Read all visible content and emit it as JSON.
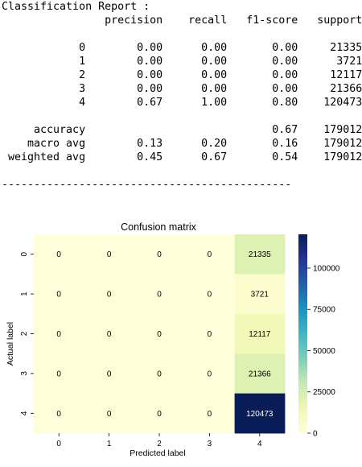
{
  "report": {
    "title": "Classification Report :",
    "headers": [
      "precision",
      "recall",
      "f1-score",
      "support"
    ],
    "rows": [
      {
        "label": "0",
        "precision": "0.00",
        "recall": "0.00",
        "f1": "0.00",
        "support": "21335"
      },
      {
        "label": "1",
        "precision": "0.00",
        "recall": "0.00",
        "f1": "0.00",
        "support": "3721"
      },
      {
        "label": "2",
        "precision": "0.00",
        "recall": "0.00",
        "f1": "0.00",
        "support": "12117"
      },
      {
        "label": "3",
        "precision": "0.00",
        "recall": "0.00",
        "f1": "0.00",
        "support": "21366"
      },
      {
        "label": "4",
        "precision": "0.67",
        "recall": "1.00",
        "f1": "0.80",
        "support": "120473"
      }
    ],
    "summary": [
      {
        "label": "accuracy",
        "precision": "",
        "recall": "",
        "f1": "0.67",
        "support": "179012"
      },
      {
        "label": "macro avg",
        "precision": "0.13",
        "recall": "0.20",
        "f1": "0.16",
        "support": "179012"
      },
      {
        "label": "weighted avg",
        "precision": "0.45",
        "recall": "0.67",
        "f1": "0.54",
        "support": "179012"
      }
    ],
    "separator": "---------------------------------------------"
  },
  "chart_data": {
    "type": "heatmap",
    "title": "Confusion matrix",
    "xlabel": "Predicted label",
    "ylabel": "Actual label",
    "x_categories": [
      "0",
      "1",
      "2",
      "3",
      "4"
    ],
    "y_categories": [
      "0",
      "1",
      "2",
      "3",
      "4"
    ],
    "matrix": [
      [
        0,
        0,
        0,
        0,
        21335
      ],
      [
        0,
        0,
        0,
        0,
        3721
      ],
      [
        0,
        0,
        0,
        0,
        12117
      ],
      [
        0,
        0,
        0,
        0,
        21366
      ],
      [
        0,
        0,
        0,
        0,
        120473
      ]
    ],
    "colormap": "YlGnBu",
    "colorbar": {
      "min": 0,
      "max": 120473,
      "ticks": [
        0,
        25000,
        50000,
        75000,
        100000
      ]
    }
  }
}
